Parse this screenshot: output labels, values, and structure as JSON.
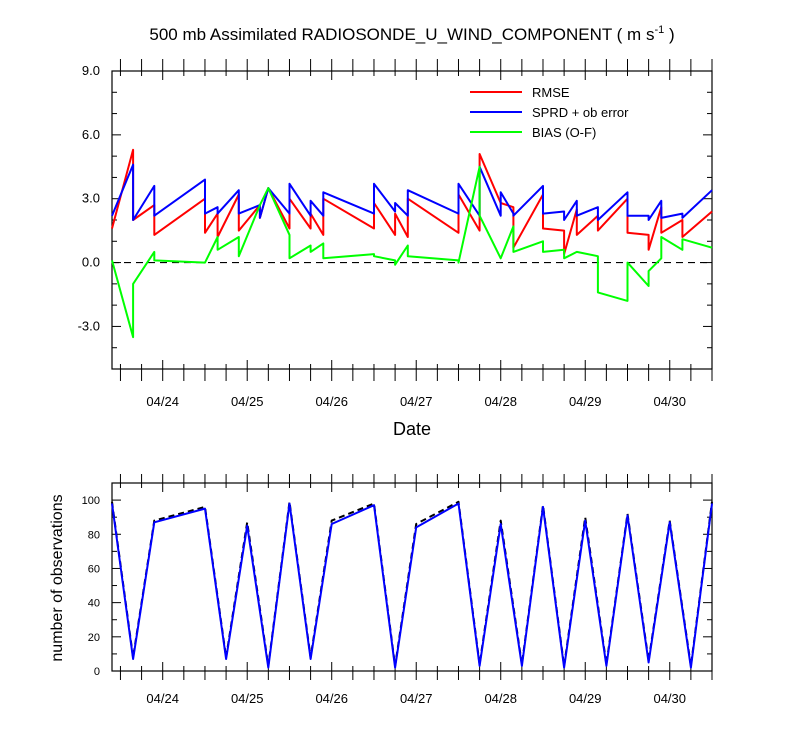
{
  "colors": {
    "rmse": "#ff0000",
    "spread": "#0000ff",
    "bias": "#00ff00",
    "axis": "#000000",
    "obs_used": "#0000ff",
    "obs_total": "#000000"
  },
  "chart_data": [
    {
      "type": "line",
      "title": "500 mb Assimilated RADIOSONDE_U_WIND_COMPONENT ( m s",
      "title_unit_exp": "-1",
      "title_suffix": " )",
      "xlabel": "Date",
      "ylabel": "",
      "ylim": [
        -5.0,
        9.0
      ],
      "yticks": [
        9.0,
        6.0,
        3.0,
        0.0,
        -3.0
      ],
      "ytick_labels": [
        "9.0",
        "6.0",
        "3.0",
        "0.0",
        "-3.0"
      ],
      "xlim": [
        23.4,
        30.5
      ],
      "xticks": [
        24,
        25,
        26,
        27,
        28,
        29,
        30
      ],
      "xtick_labels": [
        "04/24",
        "04/25",
        "04/26",
        "04/27",
        "04/28",
        "04/29",
        "04/30"
      ],
      "zero_line": "dashed",
      "legend_position": "top-right",
      "series": [
        {
          "name": "RMSE",
          "x": [
            23.4,
            23.65,
            23.65,
            23.9,
            23.9,
            24.5,
            24.5,
            24.65,
            24.65,
            24.9,
            24.9,
            25.15,
            25.15,
            25.25,
            25.5,
            25.5,
            25.75,
            25.75,
            25.9,
            25.9,
            26.5,
            26.5,
            26.75,
            26.75,
            26.9,
            26.9,
            27.5,
            27.5,
            27.75,
            27.75,
            28.0,
            28.15,
            28.15,
            28.5,
            28.5,
            28.75,
            28.75,
            28.9,
            28.9,
            29.15,
            29.15,
            29.5,
            29.5,
            29.75,
            29.75,
            29.9,
            29.9,
            30.15,
            30.15,
            30.5
          ],
          "y": [
            1.6,
            5.3,
            2.0,
            2.7,
            1.3,
            3.0,
            1.4,
            2.3,
            1.2,
            3.2,
            1.5,
            2.7,
            2.1,
            3.5,
            1.6,
            3.0,
            1.6,
            2.3,
            1.3,
            3.0,
            1.6,
            2.8,
            1.3,
            2.3,
            1.2,
            3.0,
            1.4,
            3.2,
            1.5,
            5.1,
            2.8,
            2.6,
            0.7,
            3.2,
            1.6,
            1.5,
            0.4,
            2.5,
            1.3,
            2.2,
            1.5,
            3.0,
            1.4,
            1.3,
            0.6,
            2.6,
            1.4,
            2.0,
            1.2,
            2.4
          ]
        },
        {
          "name": "SPRD + ob error",
          "x": [
            23.4,
            23.65,
            23.65,
            23.9,
            23.9,
            24.5,
            24.5,
            24.65,
            24.65,
            24.9,
            24.9,
            25.15,
            25.15,
            25.25,
            25.5,
            25.5,
            25.75,
            25.75,
            25.9,
            25.9,
            26.5,
            26.5,
            26.75,
            26.75,
            26.9,
            26.9,
            27.5,
            27.5,
            27.75,
            27.75,
            28.0,
            28.0,
            28.15,
            28.15,
            28.5,
            28.5,
            28.75,
            28.75,
            28.9,
            28.9,
            29.15,
            29.15,
            29.5,
            29.5,
            29.75,
            29.75,
            29.9,
            29.9,
            30.15,
            30.15,
            30.5
          ],
          "y": [
            2.2,
            4.6,
            2.0,
            3.6,
            2.2,
            3.9,
            2.3,
            2.6,
            2.3,
            3.4,
            2.3,
            2.7,
            2.1,
            3.5,
            2.3,
            3.7,
            2.2,
            2.9,
            2.2,
            3.3,
            2.3,
            3.7,
            2.4,
            2.8,
            2.2,
            3.4,
            2.3,
            3.7,
            2.2,
            4.5,
            2.2,
            3.3,
            2.3,
            2.2,
            3.6,
            2.3,
            2.4,
            2.0,
            2.9,
            2.2,
            2.6,
            2.0,
            3.3,
            2.2,
            2.2,
            2.0,
            2.9,
            2.1,
            2.3,
            2.1,
            3.4
          ]
        },
        {
          "name": "BIAS (O-F)",
          "x": [
            23.4,
            23.65,
            23.65,
            23.9,
            23.9,
            24.5,
            24.65,
            24.65,
            24.9,
            24.9,
            25.15,
            25.25,
            25.5,
            25.5,
            25.75,
            25.75,
            25.9,
            25.9,
            26.5,
            26.5,
            26.75,
            26.75,
            26.9,
            26.9,
            27.5,
            27.5,
            27.75,
            27.75,
            28.0,
            28.15,
            28.15,
            28.5,
            28.5,
            28.75,
            28.75,
            28.9,
            28.9,
            29.15,
            29.15,
            29.5,
            29.5,
            29.75,
            29.75,
            29.9,
            29.9,
            30.15,
            30.15,
            30.5
          ],
          "y": [
            0.1,
            -3.5,
            -1.0,
            0.5,
            0.1,
            0.0,
            1.2,
            0.6,
            1.2,
            0.3,
            2.7,
            3.5,
            1.3,
            0.2,
            0.8,
            0.5,
            0.9,
            0.2,
            0.4,
            0.3,
            0.1,
            -0.1,
            0.8,
            0.3,
            0.1,
            0.0,
            4.5,
            2.2,
            0.2,
            1.7,
            0.5,
            1.0,
            0.5,
            0.6,
            0.2,
            0.5,
            0.5,
            0.3,
            -1.4,
            -1.8,
            0.0,
            -1.1,
            -0.4,
            0.2,
            1.2,
            0.6,
            1.1,
            0.7
          ]
        }
      ]
    },
    {
      "type": "line",
      "ylabel": "number of observations",
      "ylim": [
        0,
        110
      ],
      "yticks": [
        0,
        20,
        40,
        60,
        80,
        100
      ],
      "ytick_labels": [
        "0",
        "20",
        "40",
        "60",
        "80",
        "100"
      ],
      "xlim": [
        23.4,
        30.5
      ],
      "xticks": [
        24,
        25,
        26,
        27,
        28,
        29,
        30
      ],
      "xtick_labels": [
        "04/24",
        "04/25",
        "04/26",
        "04/27",
        "04/28",
        "04/29",
        "04/30"
      ],
      "series": [
        {
          "name": "",
          "style": "dashed",
          "x": [
            23.4,
            23.65,
            23.9,
            24.5,
            24.75,
            25.0,
            25.25,
            25.5,
            25.75,
            26.0,
            26.5,
            26.75,
            27.0,
            27.5,
            27.75,
            28.0,
            28.25,
            28.5,
            28.75,
            29.0,
            29.25,
            29.5,
            29.75,
            30.0,
            30.25,
            30.5
          ],
          "y": [
            99,
            8,
            88,
            96,
            8,
            87,
            3,
            99,
            8,
            88,
            98,
            3,
            86,
            99,
            4,
            88,
            4,
            97,
            3,
            90,
            4,
            92,
            6,
            88,
            3,
            99
          ]
        },
        {
          "name": "",
          "style": "solid",
          "x": [
            23.4,
            23.65,
            23.9,
            24.5,
            24.75,
            25.0,
            25.25,
            25.5,
            25.75,
            26.0,
            26.5,
            26.75,
            27.0,
            27.5,
            27.75,
            28.0,
            28.25,
            28.5,
            28.75,
            29.0,
            29.25,
            29.5,
            29.75,
            30.0,
            30.25,
            30.5
          ],
          "y": [
            98,
            7,
            87,
            95,
            7,
            85,
            2,
            98,
            7,
            86,
            97,
            2,
            84,
            98,
            3,
            86,
            3,
            96,
            2,
            88,
            3,
            91,
            5,
            87,
            2,
            98
          ]
        }
      ]
    }
  ]
}
